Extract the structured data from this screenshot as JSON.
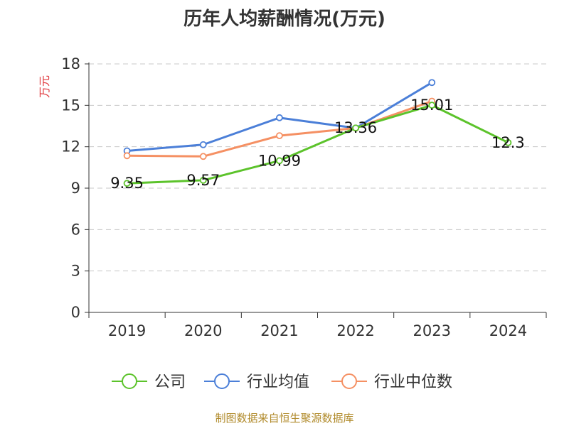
{
  "page_title": "历年人均薪酬情况(万元)",
  "source_text": "制图数据来自恒生聚源数据库",
  "chart_data": {
    "type": "line",
    "title": "历年人均薪酬情况(万元)",
    "ylabel": "万元",
    "xlabel": "",
    "categories": [
      "2019",
      "2020",
      "2021",
      "2022",
      "2023",
      "2024"
    ],
    "ylim": [
      0,
      18
    ],
    "yticks": [
      0,
      3,
      6,
      9,
      12,
      15,
      18
    ],
    "grid": true,
    "legend_position": "bottom",
    "series": [
      {
        "name": "公司",
        "color": "#5cc32b",
        "labeled": true,
        "values": [
          9.35,
          9.57,
          10.99,
          13.36,
          15.01,
          12.3
        ],
        "labels": [
          "9.35",
          "9.57",
          "10.99",
          "13.36",
          "15.01",
          "12.3"
        ]
      },
      {
        "name": "行业均值",
        "color": "#4b7fd8",
        "labeled": false,
        "values": [
          11.7,
          12.15,
          14.1,
          13.35,
          16.65,
          null
        ]
      },
      {
        "name": "行业中位数",
        "color": "#f59063",
        "labeled": false,
        "values": [
          11.35,
          11.3,
          12.8,
          13.35,
          15.3,
          null
        ]
      }
    ]
  }
}
